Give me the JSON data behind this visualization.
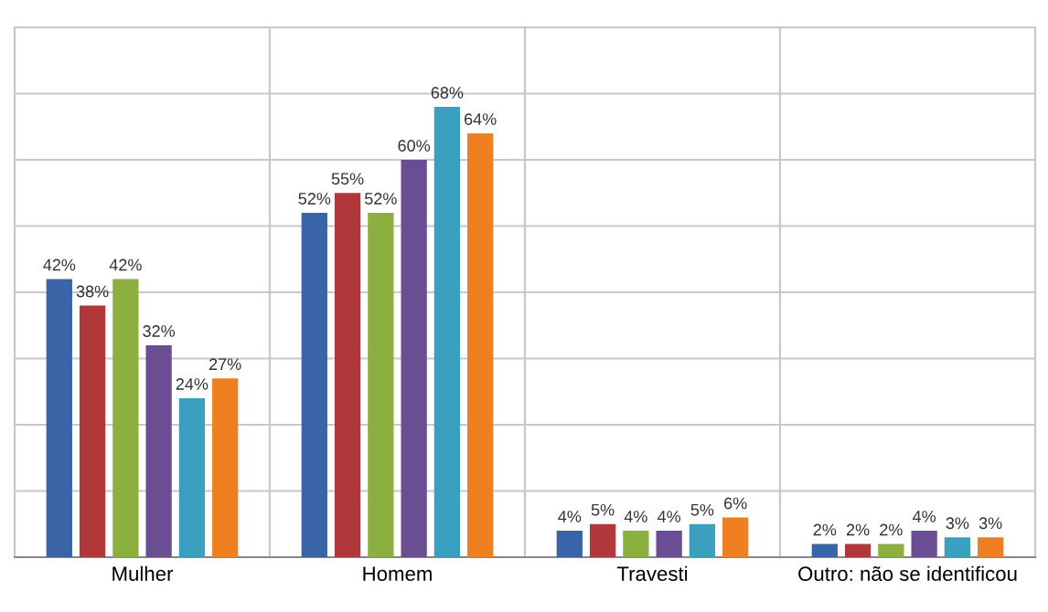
{
  "chart_data": {
    "type": "bar",
    "categories": [
      "Mulher",
      "Homem",
      "Travesti",
      "Outro: não se identificou"
    ],
    "series": [
      {
        "color": "#3a64a8",
        "values": [
          42,
          52,
          4,
          2
        ],
        "value_labels": [
          "42%",
          "52%",
          "4%",
          "2%"
        ]
      },
      {
        "color": "#b0373a",
        "values": [
          38,
          55,
          5,
          2
        ],
        "value_labels": [
          "38%",
          "55%",
          "5%",
          "2%"
        ]
      },
      {
        "color": "#8bb040",
        "values": [
          42,
          52,
          4,
          2
        ],
        "value_labels": [
          "42%",
          "52%",
          "4%",
          "2%"
        ]
      },
      {
        "color": "#6b4d94",
        "values": [
          32,
          60,
          4,
          4
        ],
        "value_labels": [
          "32%",
          "60%",
          "4%",
          "4%"
        ]
      },
      {
        "color": "#3ba0bf",
        "values": [
          24,
          68,
          5,
          3
        ],
        "value_labels": [
          "24%",
          "68%",
          "5%",
          "3%"
        ]
      },
      {
        "color": "#f07f22",
        "values": [
          27,
          64,
          6,
          3
        ],
        "value_labels": [
          "27%",
          "64%",
          "6%",
          "3%"
        ]
      }
    ],
    "ylim": [
      0,
      80
    ],
    "yticks": [
      {
        "value": 0,
        "label": null
      },
      {
        "value": 10,
        "label": null
      },
      {
        "value": 20,
        "label": null
      },
      {
        "value": 30,
        "label": null
      },
      {
        "value": 40,
        "label": null
      },
      {
        "value": 50,
        "label": null
      },
      {
        "value": 60,
        "label": null
      },
      {
        "value": 70,
        "label": null
      },
      {
        "value": 80,
        "label": null
      }
    ],
    "tick_labels": "x",
    "grid": true,
    "legend": false
  }
}
